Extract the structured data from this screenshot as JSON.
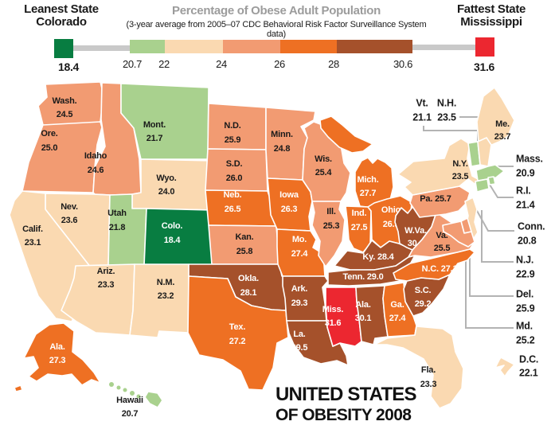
{
  "header": {
    "leanest_label": "Leanest State",
    "leanest_state": "Colorado",
    "title": "Percentage of Obese Adult Population",
    "subtitle": "(3-year average from 2005–07 CDC Behavioral Risk Factor Surveillance System data)",
    "fattest_label": "Fattest State",
    "fattest_state": "Mississippi"
  },
  "legend": {
    "min_value": "18.4",
    "max_value": "31.6",
    "ticks": [
      "20.7",
      "22",
      "24",
      "26",
      "28",
      "30.6"
    ],
    "colors": {
      "green": "#087d41",
      "lightgreen": "#a9d18e",
      "peach": "#fad9b1",
      "salmon": "#f29b72",
      "orange": "#ee7023",
      "brown": "#a5512b",
      "red": "#ec2730",
      "connector_gray": "#c9c9c9",
      "leader_gray": "#b3b3b3",
      "title_gray": "#9c9c9c"
    },
    "white_text_bins": [
      "green",
      "orange",
      "brown",
      "red"
    ]
  },
  "title_block": {
    "line1": "UNITED STATES",
    "line2": "OF OBESITY 2008"
  },
  "map": {
    "states": [
      {
        "id": "wa",
        "label": "Wash.",
        "value": "24.5",
        "bin": "salmon"
      },
      {
        "id": "or",
        "label": "Ore.",
        "value": "25.0",
        "bin": "salmon"
      },
      {
        "id": "id",
        "label": "Idaho",
        "value": "24.6",
        "bin": "salmon"
      },
      {
        "id": "mt",
        "label": "Mont.",
        "value": "21.7",
        "bin": "lightgreen"
      },
      {
        "id": "wy",
        "label": "Wyo.",
        "value": "24.0",
        "bin": "peach"
      },
      {
        "id": "nv",
        "label": "Nev.",
        "value": "23.6",
        "bin": "peach"
      },
      {
        "id": "ut",
        "label": "Utah",
        "value": "21.8",
        "bin": "lightgreen"
      },
      {
        "id": "ca",
        "label": "Calif.",
        "value": "23.1",
        "bin": "peach"
      },
      {
        "id": "co",
        "label": "Colo.",
        "value": "18.4",
        "bin": "green"
      },
      {
        "id": "az",
        "label": "Ariz.",
        "value": "23.3",
        "bin": "peach"
      },
      {
        "id": "nm",
        "label": "N.M.",
        "value": "23.2",
        "bin": "peach"
      },
      {
        "id": "nd",
        "label": "N.D.",
        "value": "25.9",
        "bin": "salmon"
      },
      {
        "id": "sd",
        "label": "S.D.",
        "value": "26.0",
        "bin": "salmon"
      },
      {
        "id": "ne",
        "label": "Neb.",
        "value": "26.5",
        "bin": "orange"
      },
      {
        "id": "ks",
        "label": "Kan.",
        "value": "25.8",
        "bin": "salmon"
      },
      {
        "id": "ok",
        "label": "Okla.",
        "value": "28.1",
        "bin": "brown"
      },
      {
        "id": "tx",
        "label": "Tex.",
        "value": "27.2",
        "bin": "orange"
      },
      {
        "id": "mn",
        "label": "Minn.",
        "value": "24.8",
        "bin": "salmon"
      },
      {
        "id": "ia",
        "label": "Iowa",
        "value": "26.3",
        "bin": "orange"
      },
      {
        "id": "mo",
        "label": "Mo.",
        "value": "27.4",
        "bin": "orange"
      },
      {
        "id": "ar",
        "label": "Ark.",
        "value": "29.3",
        "bin": "brown"
      },
      {
        "id": "la",
        "label": "La.",
        "value": "29.5",
        "bin": "brown"
      },
      {
        "id": "wi",
        "label": "Wis.",
        "value": "25.4",
        "bin": "salmon"
      },
      {
        "id": "il",
        "label": "Ill.",
        "value": "25.3",
        "bin": "salmon"
      },
      {
        "id": "mi",
        "label": "Mich.",
        "value": "27.7",
        "bin": "orange"
      },
      {
        "id": "in",
        "label": "Ind.",
        "value": "27.5",
        "bin": "orange"
      },
      {
        "id": "oh",
        "label": "Ohio",
        "value": "26.9",
        "bin": "orange"
      },
      {
        "id": "ky",
        "label": "Ky.",
        "value": "28.4",
        "bin": "brown"
      },
      {
        "id": "tn",
        "label": "Tenn.",
        "value": "29.0",
        "bin": "brown"
      },
      {
        "id": "ms",
        "label": "Miss.",
        "value": "31.6",
        "bin": "red"
      },
      {
        "id": "al",
        "label": "Ala.",
        "value": "30.1",
        "bin": "brown"
      },
      {
        "id": "ga",
        "label": "Ga.",
        "value": "27.4",
        "bin": "orange"
      },
      {
        "id": "sc",
        "label": "S.C.",
        "value": "29.2",
        "bin": "brown"
      },
      {
        "id": "nc",
        "label": "N.C.",
        "value": "27.1",
        "bin": "orange"
      },
      {
        "id": "wv",
        "label": "W.Va.",
        "value": "30.6",
        "bin": "brown"
      },
      {
        "id": "va",
        "label": "Va.",
        "value": "25.5",
        "bin": "salmon"
      },
      {
        "id": "pa",
        "label": "Pa.",
        "value": "25.7",
        "bin": "salmon"
      },
      {
        "id": "ny",
        "label": "N.Y.",
        "value": "23.5",
        "bin": "peach"
      },
      {
        "id": "me",
        "label": "Me.",
        "value": "23.7",
        "bin": "peach"
      },
      {
        "id": "fl",
        "label": "Fla.",
        "value": "23.3",
        "bin": "peach"
      },
      {
        "id": "ak",
        "label": "Ala.",
        "value": "27.3",
        "bin": "orange"
      },
      {
        "id": "hi",
        "label": "Hawaii",
        "value": "20.7",
        "bin": "lightgreen"
      },
      {
        "id": "vt",
        "label": "Vt.",
        "value": "21.1",
        "bin": "lightgreen"
      },
      {
        "id": "nh",
        "label": "N.H.",
        "value": "23.5",
        "bin": "peach"
      },
      {
        "id": "ma",
        "label": "Mass.",
        "value": "20.9",
        "bin": "lightgreen"
      },
      {
        "id": "ri",
        "label": "R.I.",
        "value": "21.4",
        "bin": "lightgreen"
      },
      {
        "id": "ct",
        "label": "Conn.",
        "value": "20.8",
        "bin": "lightgreen"
      },
      {
        "id": "nj",
        "label": "N.J.",
        "value": "22.9",
        "bin": "peach"
      },
      {
        "id": "de",
        "label": "Del.",
        "value": "25.9",
        "bin": "salmon"
      },
      {
        "id": "md",
        "label": "Md.",
        "value": "25.2",
        "bin": "salmon"
      },
      {
        "id": "dc",
        "label": "D.C.",
        "value": "22.1",
        "bin": "peach"
      }
    ]
  }
}
